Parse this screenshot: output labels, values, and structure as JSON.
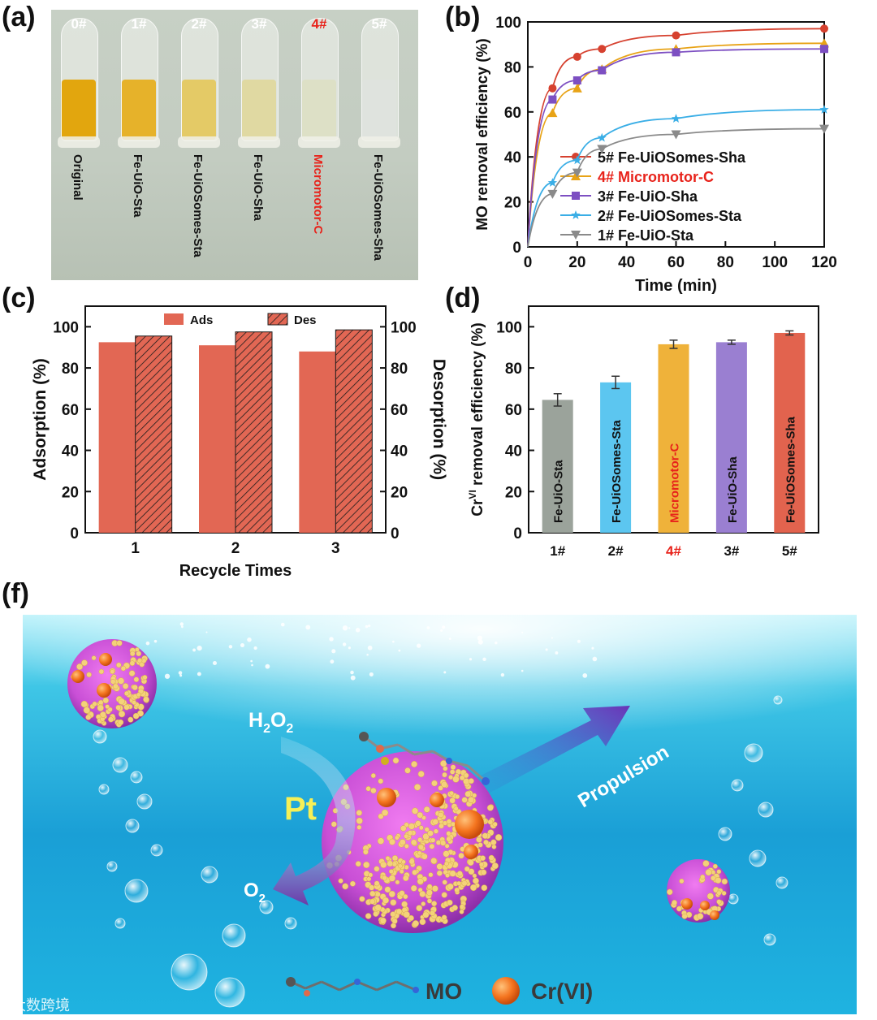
{
  "panels": {
    "a": "(a)",
    "b": "(b)",
    "c": "(c)",
    "d": "(d)",
    "f": "(f)"
  },
  "photo": {
    "vials": [
      {
        "num": "0#",
        "label": "Original",
        "liquid": "#e2a60e"
      },
      {
        "num": "1#",
        "label": "Fe-UiO-Sta",
        "liquid": "#e6b22a"
      },
      {
        "num": "2#",
        "label": "Fe-UiOSomes-Sta",
        "liquid": "#e4ca66"
      },
      {
        "num": "3#",
        "label": "Fe-UiO-Sha",
        "liquid": "#e0d9a2"
      },
      {
        "num": "4#",
        "label": "Micromotor-C",
        "liquid": "#dde0c6",
        "highlight": true
      },
      {
        "num": "5#",
        "label": "Fe-UiOSomes-Sha",
        "liquid": "#dfe3de"
      }
    ]
  },
  "chart_data": [
    {
      "panel": "b",
      "type": "line",
      "xlabel": "Time (min)",
      "ylabel": "MO removal efficiency (%)",
      "xlim": [
        0,
        120
      ],
      "ylim": [
        0,
        100
      ],
      "xticks": [
        0,
        20,
        40,
        60,
        80,
        100,
        120
      ],
      "yticks": [
        0,
        20,
        40,
        60,
        80,
        100
      ],
      "x": [
        0,
        10,
        20,
        30,
        60,
        120
      ],
      "series": [
        {
          "name": "5# Fe-UiOSomes-Sha",
          "marker": "circle",
          "color": "#d6412f",
          "values": [
            0,
            70.5,
            84.5,
            88,
            94,
            97
          ]
        },
        {
          "name": "4# Micromotor-C",
          "marker": "triangle-up",
          "color": "#e8a316",
          "labelColor": "#e8231b",
          "values": [
            0,
            59.5,
            70.5,
            79,
            88,
            90.5
          ]
        },
        {
          "name": "3# Fe-UiO-Sha",
          "marker": "square",
          "color": "#7d4fc2",
          "values": [
            0,
            65.5,
            74,
            78.5,
            86.5,
            88
          ]
        },
        {
          "name": "2# Fe-UiOSomes-Sta",
          "marker": "star",
          "color": "#3aaee6",
          "values": [
            0,
            28.5,
            38.5,
            48.5,
            57,
            61
          ]
        },
        {
          "name": "1# Fe-UiO-Sta",
          "marker": "triangle-down",
          "color": "#8a8a8a",
          "values": [
            0,
            23.5,
            33,
            43.5,
            50,
            52.5
          ]
        }
      ]
    },
    {
      "panel": "c",
      "type": "bar",
      "xlabel": "Recycle Times",
      "ylabel": "Adsorption (%)",
      "ylabel_right": "Desorption (%)",
      "categories": [
        "1",
        "2",
        "3"
      ],
      "ylim": [
        0,
        110
      ],
      "yticks": [
        0,
        20,
        40,
        60,
        80,
        100
      ],
      "series": [
        {
          "name": "Ads",
          "pattern": "solid",
          "color": "#e26754",
          "values": [
            92.5,
            91,
            88
          ]
        },
        {
          "name": "Des",
          "pattern": "hatched",
          "color": "#e26754",
          "values": [
            95.5,
            97.5,
            98.5
          ]
        }
      ]
    },
    {
      "panel": "d",
      "type": "bar",
      "xlabel": "",
      "ylabel_main": "Cr",
      "ylabel_sup": "VI",
      "ylabel_rest": " removal efficiency (%)",
      "ylim": [
        0,
        110
      ],
      "yticks": [
        0,
        20,
        40,
        60,
        80,
        100
      ],
      "categories": [
        "1#",
        "2#",
        "4#",
        "3#",
        "5#"
      ],
      "category_colors": [
        "#111111",
        "#111111",
        "#e8231b",
        "#111111",
        "#111111"
      ],
      "bar_labels": [
        "Fe-UiO-Sta",
        "Fe-UiOSomes-Sta",
        "Micromotor-C",
        "Fe-UiO-Sha",
        "Fe-UiOSomes-Sha"
      ],
      "label_colors": [
        "#111111",
        "#111111",
        "#e8231b",
        "#111111",
        "#111111"
      ],
      "bar_colors": [
        "#9ba39b",
        "#5cc6f0",
        "#efb23a",
        "#9a7fd1",
        "#e2634e"
      ],
      "values": [
        64.5,
        73,
        91.5,
        92.5,
        97
      ],
      "errors": [
        3,
        3,
        2,
        1,
        1
      ]
    }
  ],
  "scene": {
    "h2o2_main": "H",
    "h2o2_sub1": "2",
    "h2o2_o": "O",
    "h2o2_sub2": "2",
    "catalyst": "Pt",
    "o2_main": "O",
    "o2_sub": "2",
    "propulsion": "Propulsion",
    "legend_mo": "MO",
    "legend_cr": "Cr(VI)"
  },
  "watermark": "大数跨境"
}
